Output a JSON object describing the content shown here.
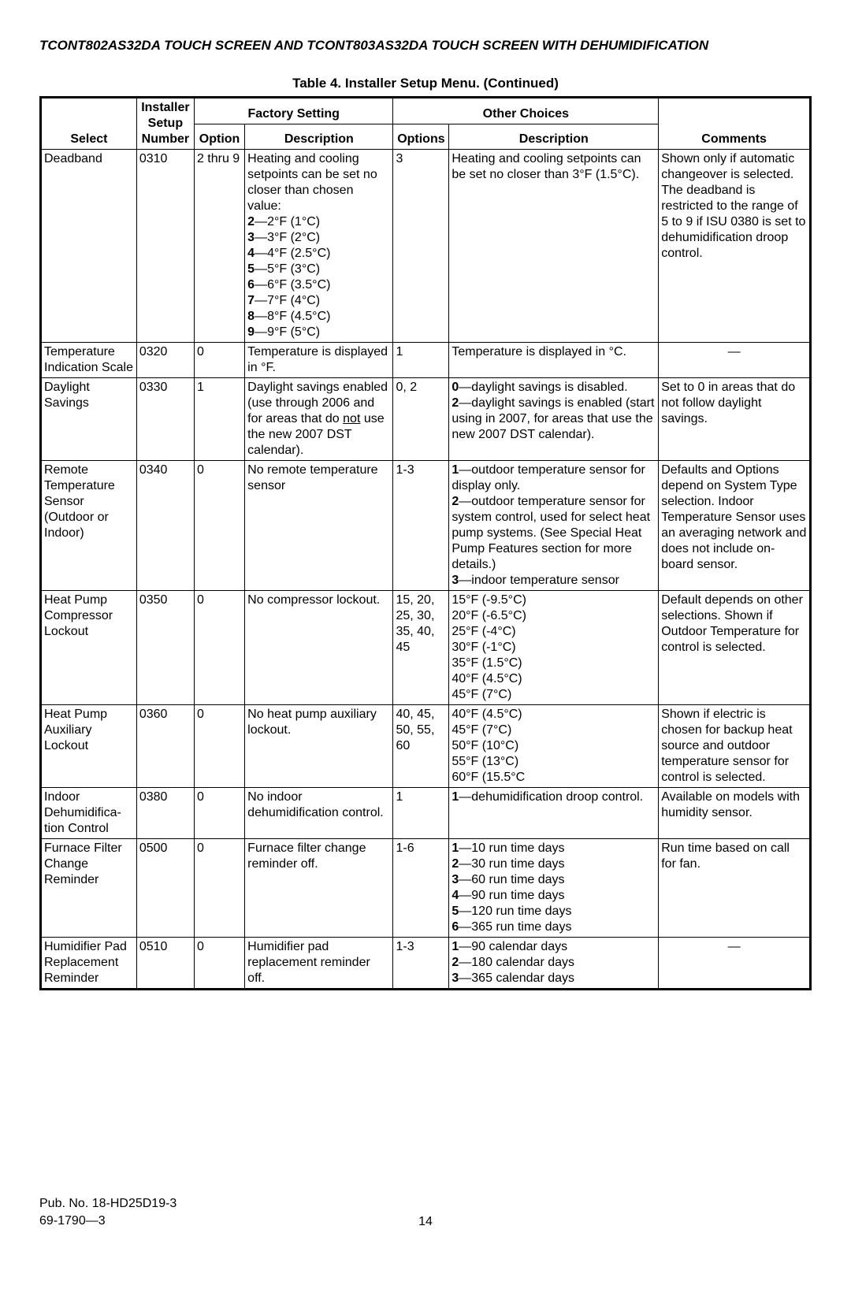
{
  "header": "TCONT802AS32DA TOUCH SCREEN AND TCONT803AS32DA TOUCH SCREEN WITH DEHUMIDIFICATION",
  "table_title": "Table 4. Installer Setup Menu. (Continued)",
  "columns": {
    "select": "Select",
    "isu": "Installer Setup Number",
    "option": "Option",
    "factory_group": "Factory Setting",
    "desc1": "Description",
    "options": "Options",
    "other_group": "Other Choices",
    "desc2": "Description",
    "comments": "Comments"
  },
  "rows": [
    {
      "select": "Deadband",
      "isu": "0310",
      "option": "2 thru 9",
      "desc1_html": "Heating and cooling setpoints can be set no closer than chosen value:<br><b>2</b>—2°F (1°C)<br><b>3</b>—3°F (2°C)<br><b>4</b>—4°F (2.5°C)<br><b>5</b>—5°F (3°C)<br><b>6</b>—6°F (3.5°C)<br><b>7</b>—7°F (4°C)<br><b>8</b>—8°F (4.5°C)<br><b>9</b>—9°F (5°C)",
      "options": "3",
      "desc2_html": "Heating and cooling setpoints can be set no closer than 3°F (1.5°C).",
      "comments_html": "Shown only if automatic changeover is selected.<br>The deadband is restricted to the range of 5 to 9 if ISU 0380 is set to dehumidification droop control."
    },
    {
      "select": "Temperature Indication Scale",
      "isu": "0320",
      "option": "0",
      "desc1_html": "Temperature is displayed in °F.",
      "options": "1",
      "desc2_html": "Temperature is displayed in °C.",
      "comments_html": "<div class='center'>—</div>"
    },
    {
      "select": "Daylight Savings",
      "isu": "0330",
      "option": "1",
      "desc1_html": "Daylight savings enabled (use through 2006 and for areas that do <span class='underline'>not</span> use the new 2007 DST calendar).",
      "options": "0, 2",
      "desc2_html": "<b>0</b>—daylight savings is disabled.<br><b>2</b>—daylight savings is enabled (start using in 2007, for areas that use the new 2007 DST calendar).",
      "comments_html": "Set to 0 in areas that do not follow daylight savings."
    },
    {
      "select": "Remote Temperature Sensor (Outdoor or Indoor)",
      "isu": "0340",
      "option": "0",
      "desc1_html": "No remote temperature sensor",
      "options": "1-3",
      "desc2_html": "<b>1</b>—outdoor temperature sensor for display only.<br><b>2</b>—outdoor temperature sensor for system control, used for select heat pump systems. (See Special Heat Pump Features section for more details.)<br><b>3</b>—indoor temperature sensor",
      "comments_html": "Defaults and Options depend on System Type selection. Indoor Temperature Sensor uses an averaging network and does not include on-board sensor."
    },
    {
      "select": "Heat Pump Compressor Lockout",
      "isu": "0350",
      "option": "0",
      "desc1_html": "No compressor lockout.",
      "options": "15, 20, 25, 30, 35, 40, 45",
      "desc2_html": "15°F (-9.5°C)<br>20°F (-6.5°C)<br>25°F (-4°C)<br>30°F (-1°C)<br>35°F (1.5°C)<br>40°F (4.5°C)<br>45°F (7°C)",
      "comments_html": "Default depends on other selections. Shown if Outdoor Temperature for control is selected."
    },
    {
      "select": "Heat Pump Auxiliary Lockout",
      "isu": "0360",
      "option": "0",
      "desc1_html": "No heat pump auxiliary lockout.",
      "options": "40, 45, 50, 55, 60",
      "desc2_html": "40°F (4.5°C)<br>45°F (7°C)<br>50°F (10°C)<br>55°F (13°C)<br>60°F (15.5°C",
      "comments_html": "Shown if electric is chosen for backup heat source and outdoor temperature sensor for control is selected."
    },
    {
      "select": "Indoor Dehumidifica- tion Control",
      "isu": "0380",
      "option": "0",
      "desc1_html": "No indoor dehumidification control.",
      "options": "1",
      "desc2_html": "<b>1</b>—dehumidification droop control.",
      "comments_html": "Available on models with humidity sensor."
    },
    {
      "select": "Furnace Filter Change Reminder",
      "isu": "0500",
      "option": "0",
      "desc1_html": "Furnace filter change reminder off.",
      "options": "1-6",
      "desc2_html": "<b>1</b>—10 run time days<br><b>2</b>—30 run time days<br><b>3</b>—60 run time days<br><b>4</b>—90 run time days<br><b>5</b>—120 run time days<br><b>6</b>—365 run time days",
      "comments_html": "Run time based on call for fan."
    },
    {
      "select": "Humidifier Pad Replacement Reminder",
      "isu": "0510",
      "option": "0",
      "desc1_html": "Humidifier pad replacement reminder off.",
      "options": "1-3",
      "desc2_html": "<b>1</b>—90 calendar days<br><b>2</b>—180 calendar days<br><b>3</b>—365 calendar days",
      "comments_html": "<div class='center'>—</div>"
    }
  ],
  "footer": {
    "pub1": "Pub. No. 18-HD25D19-3",
    "pub2": "69-1790—3",
    "page": "14"
  }
}
